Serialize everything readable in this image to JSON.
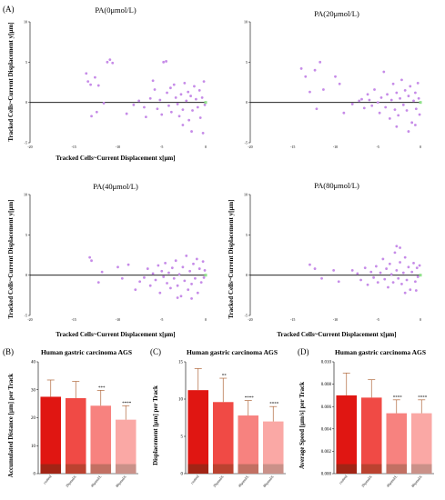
{
  "figure": {
    "panel_A_letter": "(A)",
    "panel_B_letter": "(B)",
    "panel_C_letter": "(C)",
    "panel_D_letter": "(D)",
    "scatter_x_ticks": [
      "-20",
      "-15",
      "-10",
      "-5",
      "0"
    ],
    "scatter_y_ticks": [
      "10",
      "5",
      "0",
      "-5"
    ],
    "point_color": "#c68be8",
    "bar_colors": [
      "#e01612",
      "#f04a45",
      "#f7827f",
      "#faa8a5"
    ],
    "bar_bottom_colors": [
      "#8e2a17",
      "#a9402a",
      "#b06a5a",
      "#b98a80"
    ]
  },
  "chart_data": [
    {
      "type": "scatter",
      "title": "PA(0μmol/L)",
      "xlabel": "Tracked Cells~Current Displacement x[μm]",
      "ylabel": "Tracked Cells~Current Displacement y[μm]",
      "xlim": [
        -20,
        0
      ],
      "ylim": [
        -5,
        10
      ],
      "points": [
        [
          -13.6,
          3.6
        ],
        [
          -13.4,
          2.6
        ],
        [
          -13.1,
          2.2
        ],
        [
          -12.6,
          3.1
        ],
        [
          -12.2,
          2.1
        ],
        [
          -11.2,
          5.0
        ],
        [
          -10.9,
          5.3
        ],
        [
          -10.6,
          4.9
        ],
        [
          -11.6,
          -0.1
        ],
        [
          -12.4,
          -1.2
        ],
        [
          -13.0,
          -1.7
        ],
        [
          -9.0,
          -1.4
        ],
        [
          -8.2,
          -0.3
        ],
        [
          -7.6,
          0.2
        ],
        [
          -7.0,
          -0.6
        ],
        [
          -6.8,
          -1.8
        ],
        [
          -6.3,
          0.5
        ],
        [
          -6.0,
          2.7
        ],
        [
          -5.8,
          1.6
        ],
        [
          -5.5,
          -0.8
        ],
        [
          -5.2,
          0.3
        ],
        [
          -5.0,
          -1.5
        ],
        [
          -4.8,
          5.0
        ],
        [
          -4.5,
          5.1
        ],
        [
          -4.4,
          1.2
        ],
        [
          -4.2,
          -0.4
        ],
        [
          -4.0,
          1.8
        ],
        [
          -3.9,
          -1.2
        ],
        [
          -3.6,
          2.2
        ],
        [
          -3.4,
          0.6
        ],
        [
          -3.2,
          -0.2
        ],
        [
          -3.0,
          -1.7
        ],
        [
          -2.8,
          1.0
        ],
        [
          -2.6,
          -0.9
        ],
        [
          -2.4,
          2.4
        ],
        [
          -2.2,
          0.2
        ],
        [
          -2.0,
          1.3
        ],
        [
          -1.9,
          -2.2
        ],
        [
          -1.7,
          0.8
        ],
        [
          -1.5,
          -1.0
        ],
        [
          -1.3,
          2.0
        ],
        [
          -1.1,
          0.4
        ],
        [
          -0.9,
          -0.6
        ],
        [
          -0.7,
          1.5
        ],
        [
          -0.6,
          -1.9
        ],
        [
          -0.4,
          0.6
        ],
        [
          -0.3,
          -3.8
        ],
        [
          -0.2,
          2.6
        ],
        [
          -0.1,
          -0.3
        ],
        [
          -1.6,
          -3.6
        ],
        [
          -2.6,
          -2.8
        ]
      ]
    },
    {
      "type": "scatter",
      "title": "PA(20μmol/L)",
      "xlabel": "",
      "ylabel": "",
      "xlim": [
        -20,
        0
      ],
      "ylim": [
        -5,
        10
      ],
      "points": [
        [
          -14.0,
          4.2
        ],
        [
          -13.5,
          3.2
        ],
        [
          -12.4,
          4.0
        ],
        [
          -11.8,
          5.0
        ],
        [
          -13.0,
          1.3
        ],
        [
          -11.4,
          1.6
        ],
        [
          -12.2,
          -0.8
        ],
        [
          -10.0,
          3.2
        ],
        [
          -9.5,
          2.3
        ],
        [
          -9.0,
          -1.3
        ],
        [
          -8.0,
          -0.2
        ],
        [
          -7.2,
          0.2
        ],
        [
          -6.9,
          0.4
        ],
        [
          -6.6,
          -0.7
        ],
        [
          -6.2,
          1.0
        ],
        [
          -6.0,
          0.3
        ],
        [
          -5.7,
          -0.4
        ],
        [
          -5.4,
          1.6
        ],
        [
          -5.0,
          0.0
        ],
        [
          -4.8,
          -1.3
        ],
        [
          -4.6,
          0.6
        ],
        [
          -4.3,
          3.8
        ],
        [
          -4.1,
          -0.6
        ],
        [
          -3.9,
          1.0
        ],
        [
          -3.6,
          -2.0
        ],
        [
          -3.4,
          0.3
        ],
        [
          -3.2,
          2.3
        ],
        [
          -3.0,
          -0.9
        ],
        [
          -2.8,
          1.2
        ],
        [
          -2.6,
          -1.6
        ],
        [
          -2.4,
          0.5
        ],
        [
          -2.2,
          2.8
        ],
        [
          -2.0,
          -0.3
        ],
        [
          -1.8,
          1.5
        ],
        [
          -1.6,
          -1.0
        ],
        [
          -1.4,
          0.8
        ],
        [
          -1.2,
          2.0
        ],
        [
          -1.0,
          -2.5
        ],
        [
          -0.8,
          0.2
        ],
        [
          -0.6,
          1.2
        ],
        [
          -0.5,
          -0.8
        ],
        [
          -0.3,
          2.4
        ],
        [
          -0.2,
          0.5
        ],
        [
          -0.1,
          -1.5
        ],
        [
          -2.8,
          -3.0
        ],
        [
          -1.4,
          -3.6
        ],
        [
          -0.6,
          -2.8
        ]
      ]
    },
    {
      "type": "scatter",
      "title": "PA(40μmol/L)",
      "xlabel": "Tracked Cells~Current Displacement x[μm]",
      "ylabel": "Tracked Cells~Current Displacement y[μm]",
      "xlim": [
        -20,
        0
      ],
      "ylim": [
        -5,
        10
      ],
      "points": [
        [
          -13.2,
          2.2
        ],
        [
          -13.0,
          1.8
        ],
        [
          -12.2,
          -0.9
        ],
        [
          -11.8,
          0.4
        ],
        [
          -10.0,
          1.0
        ],
        [
          -9.5,
          -0.4
        ],
        [
          -8.8,
          1.3
        ],
        [
          -8.0,
          -1.8
        ],
        [
          -7.5,
          -0.8
        ],
        [
          -7.0,
          -0.3
        ],
        [
          -6.6,
          0.8
        ],
        [
          -6.3,
          -1.3
        ],
        [
          -6.0,
          0.2
        ],
        [
          -5.7,
          -0.6
        ],
        [
          -5.4,
          1.2
        ],
        [
          -5.2,
          -2.2
        ],
        [
          -5.0,
          0.5
        ],
        [
          -4.8,
          -0.2
        ],
        [
          -4.6,
          1.5
        ],
        [
          -4.4,
          -1.0
        ],
        [
          -4.2,
          0.3
        ],
        [
          -4.0,
          -1.6
        ],
        [
          -3.8,
          0.9
        ],
        [
          -3.6,
          -0.4
        ],
        [
          -3.4,
          1.8
        ],
        [
          -3.2,
          -1.3
        ],
        [
          -3.0,
          0.1
        ],
        [
          -2.8,
          -2.6
        ],
        [
          -2.6,
          1.0
        ],
        [
          -2.4,
          -0.7
        ],
        [
          -2.2,
          2.4
        ],
        [
          -2.0,
          -1.8
        ],
        [
          -1.8,
          0.5
        ],
        [
          -1.6,
          -1.1
        ],
        [
          -1.4,
          1.4
        ],
        [
          -1.2,
          -0.4
        ],
        [
          -1.0,
          2.0
        ],
        [
          -0.9,
          -2.2
        ],
        [
          -0.7,
          0.8
        ],
        [
          -0.5,
          -0.9
        ],
        [
          -0.3,
          1.7
        ],
        [
          -0.2,
          -0.3
        ],
        [
          -0.1,
          0.6
        ],
        [
          -3.2,
          -2.8
        ],
        [
          -1.6,
          -2.9
        ]
      ]
    },
    {
      "type": "scatter",
      "title": "PA(80μmol/L)",
      "xlabel": "Tracked Cells~Current Displacement x[μm]",
      "ylabel": "Tracked Cells~Current Displacement y[μm]",
      "xlim": [
        -20,
        0
      ],
      "ylim": [
        -5,
        10
      ],
      "points": [
        [
          -13.0,
          1.3
        ],
        [
          -12.4,
          0.8
        ],
        [
          -11.6,
          -0.4
        ],
        [
          -10.2,
          0.6
        ],
        [
          -9.6,
          -0.8
        ],
        [
          -8.0,
          0.6
        ],
        [
          -7.4,
          0.2
        ],
        [
          -7.0,
          -0.6
        ],
        [
          -6.5,
          0.9
        ],
        [
          -6.2,
          -1.2
        ],
        [
          -5.8,
          0.4
        ],
        [
          -5.5,
          -0.3
        ],
        [
          -5.2,
          1.1
        ],
        [
          -5.0,
          -0.9
        ],
        [
          -4.7,
          0.3
        ],
        [
          -4.4,
          2.0
        ],
        [
          -4.2,
          -0.5
        ],
        [
          -4.0,
          0.8
        ],
        [
          -3.8,
          -1.5
        ],
        [
          -3.6,
          1.4
        ],
        [
          -3.4,
          0.1
        ],
        [
          -3.2,
          -0.9
        ],
        [
          -3.0,
          2.8
        ],
        [
          -2.8,
          0.6
        ],
        [
          -2.6,
          -0.4
        ],
        [
          -2.4,
          1.6
        ],
        [
          -2.2,
          -1.1
        ],
        [
          -2.0,
          0.3
        ],
        [
          -1.8,
          2.2
        ],
        [
          -1.6,
          -0.6
        ],
        [
          -1.4,
          1.0
        ],
        [
          -1.2,
          -1.8
        ],
        [
          -1.0,
          0.4
        ],
        [
          -0.8,
          1.5
        ],
        [
          -0.6,
          -0.8
        ],
        [
          -0.4,
          0.9
        ],
        [
          -0.3,
          -0.2
        ],
        [
          -0.1,
          1.2
        ],
        [
          -2.4,
          3.4
        ],
        [
          -2.8,
          3.6
        ],
        [
          -1.8,
          -2.2
        ],
        [
          -0.5,
          -1.9
        ]
      ]
    },
    {
      "type": "bar",
      "title": "Human gastric carcinoma AGS",
      "xlabel": "",
      "ylabel": "Accumulated Distance [μm] per Track",
      "categories": [
        "control",
        "20μmol/L",
        "40μmol/L",
        "80μmol/L"
      ],
      "values": [
        27.5,
        27.0,
        24.3,
        19.3
      ],
      "errors": [
        6.0,
        6.0,
        5.5,
        5.0
      ],
      "significance": [
        "",
        "",
        "***",
        "****"
      ],
      "ylim": [
        0,
        40
      ],
      "yticks": [
        "40",
        "30",
        "20",
        "10",
        "0"
      ]
    },
    {
      "type": "bar",
      "title": "Human gastric carcinoma AGS",
      "xlabel": "",
      "ylabel": "Displacement [μm] per Track",
      "categories": [
        "control",
        "20μmol/L",
        "40μmol/L",
        "80μmol/L"
      ],
      "values": [
        11.2,
        9.6,
        7.8,
        7.0
      ],
      "errors": [
        2.9,
        3.2,
        2.0,
        2.0
      ],
      "significance": [
        "",
        "**",
        "****",
        "****"
      ],
      "ylim": [
        0,
        15
      ],
      "yticks": [
        "15",
        "10",
        "5",
        "0"
      ]
    },
    {
      "type": "bar",
      "title": "Human gastric carcinoma AGS",
      "xlabel": "",
      "ylabel": "Average Speed [μm/s] per Track",
      "categories": [
        "control",
        "20μmol/L",
        "40μmol/L",
        "80μmol/L"
      ],
      "values": [
        0.007,
        0.0068,
        0.0054,
        0.0054
      ],
      "errors": [
        0.002,
        0.0016,
        0.0012,
        0.0012
      ],
      "significance": [
        "",
        "",
        "****",
        "****"
      ],
      "ylim": [
        0,
        0.01
      ],
      "yticks": [
        "0.010",
        "0.008",
        "0.006",
        "0.004",
        "0.002",
        "0.000"
      ]
    }
  ]
}
